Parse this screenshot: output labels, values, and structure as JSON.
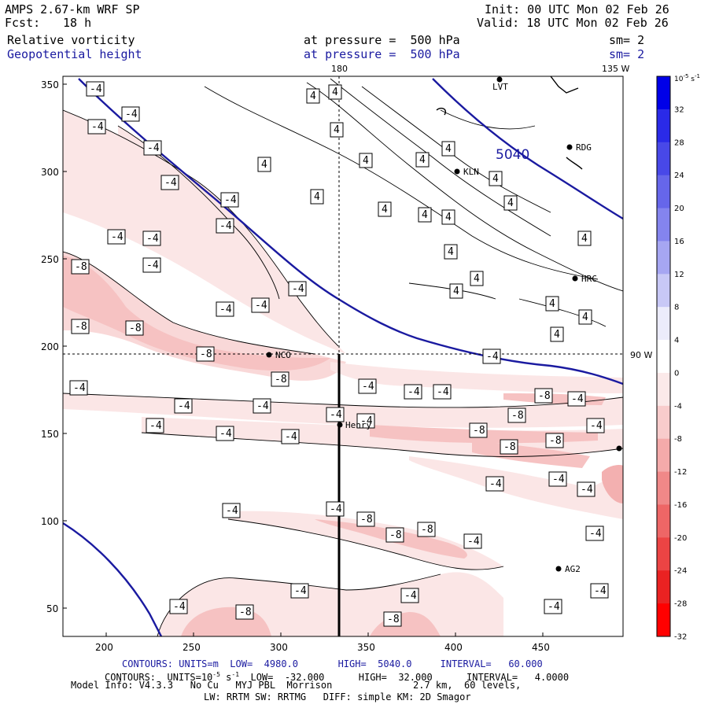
{
  "header": {
    "model": "AMPS 2.67-km WRF SP",
    "init": "Init: 00 UTC Mon 02 Feb 26",
    "fcst_label": "Fcst:",
    "fcst_value": "18 h",
    "valid": "Valid: 18 UTC Mon 02 Feb 26",
    "field1": "Relative vorticity",
    "field1_level": "at pressure =  500 hPa",
    "field1_sm": "sm= 2",
    "field2": "Geopotential height",
    "field2_level": "at pressure =  500 hPa",
    "field2_sm": "sm= 2"
  },
  "map": {
    "lon_top_180": "180",
    "lon_top_135w": "135 W",
    "lat_right_90w": "90 W",
    "height_label": "5040",
    "x_ticks": [
      "200",
      "250",
      "300",
      "350",
      "400",
      "450"
    ],
    "y_ticks": [
      "350",
      "300",
      "250",
      "200",
      "150",
      "100",
      "50"
    ],
    "stations": [
      {
        "name": "LVT",
        "icon": "station-dot"
      },
      {
        "name": "RDG",
        "icon": "station-dot"
      },
      {
        "name": "KLN",
        "icon": "station-dot"
      },
      {
        "name": "HRC",
        "icon": "station-dot"
      },
      {
        "name": "NCO",
        "icon": "station-dot"
      },
      {
        "name": "Henry",
        "icon": "station-dot"
      },
      {
        "name": "AG2",
        "icon": "station-dot"
      }
    ],
    "contour_labels": [
      "-4",
      "-8",
      "4"
    ]
  },
  "colorbar": {
    "unit": "10",
    "unit_exp": "-5",
    "unit_suffix": " s",
    "unit_suffix_exp": "-1",
    "labels": [
      "32",
      "28",
      "24",
      "20",
      "16",
      "12",
      "8",
      "4",
      "0",
      "-4",
      "-8",
      "-12",
      "-16",
      "-20",
      "-24",
      "-28",
      "-32"
    ],
    "colors": [
      "#0000e8",
      "#2a2ae8",
      "#4848e8",
      "#6666ea",
      "#8484ee",
      "#a6a6f2",
      "#c8c8f6",
      "#ececfb",
      "#ffffff",
      "#fbe9e9",
      "#f8cccc",
      "#f4aaaa",
      "#f08888",
      "#ee6666",
      "#ec4444",
      "#ea2222",
      "#ff0000"
    ]
  },
  "footer": {
    "line1_label": "CONTOURS:",
    "line1_units": "UNITS=m",
    "line1_low": "LOW=  4980.0",
    "line1_high": "HIGH=  5040.0",
    "line1_interval": "INTERVAL=   60.000",
    "line2_label": "CONTOURS:",
    "line2_units": "UNITS=10",
    "line2_units_exp": "-5",
    "line2_units_suffix": " s",
    "line2_units_suffix_exp": "-1",
    "line2_low": "LOW=  -32.000",
    "line2_high": "HIGH=  32.000",
    "line2_interval": "INTERVAL=   4.0000",
    "line3_left": "Model Info: V4.3.3   No Cu   MYJ PBL  Morrison",
    "line3_right": "2.7 km,  60 levels,",
    "line4": "LW: RRTM SW: RRTMG   DIFF: simple KM: 2D Smagor"
  }
}
